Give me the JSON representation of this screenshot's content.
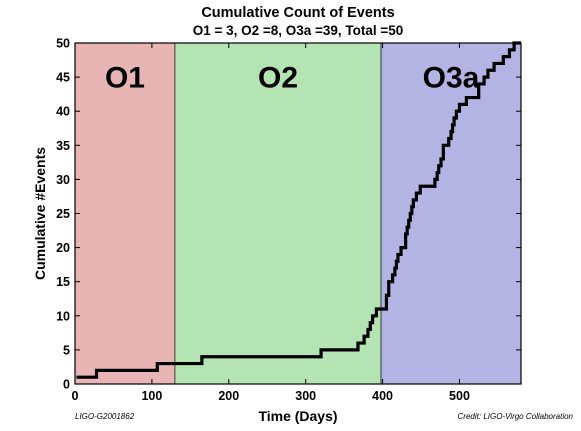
{
  "chart_data": {
    "type": "line",
    "title": "Cumulative Count of Events",
    "subtitle": "O1 = 3, O2 =8, O3a =39, Total =50",
    "xlabel": "Time (Days)",
    "ylabel": "Cumulative #Events",
    "xlim": [
      0,
      580
    ],
    "ylim": [
      0,
      50
    ],
    "xticks": [
      0,
      100,
      200,
      300,
      400,
      500
    ],
    "yticks": [
      0,
      5,
      10,
      15,
      20,
      25,
      30,
      35,
      40,
      45,
      50
    ],
    "grid": false,
    "regions": [
      {
        "label": "O1",
        "x_start": 0,
        "x_end": 130,
        "color": "#e8b4b4"
      },
      {
        "label": "O2",
        "x_start": 130,
        "x_end": 398,
        "color": "#b4e4b4"
      },
      {
        "label": "O3a",
        "x_start": 398,
        "x_end": 580,
        "color": "#b4b4e4"
      }
    ],
    "series": [
      {
        "color": "#000000",
        "step": true,
        "points": [
          [
            2,
            1
          ],
          [
            28,
            2
          ],
          [
            107,
            3
          ],
          [
            165,
            4
          ],
          [
            320,
            5
          ],
          [
            368,
            6
          ],
          [
            376,
            7
          ],
          [
            381,
            8
          ],
          [
            384,
            9
          ],
          [
            387,
            10
          ],
          [
            392,
            11
          ],
          [
            405,
            13
          ],
          [
            408,
            15
          ],
          [
            413,
            16
          ],
          [
            416,
            17
          ],
          [
            418,
            18
          ],
          [
            420,
            19
          ],
          [
            424,
            20
          ],
          [
            430,
            22
          ],
          [
            432,
            23
          ],
          [
            434,
            24
          ],
          [
            436,
            25
          ],
          [
            438,
            26
          ],
          [
            440,
            27
          ],
          [
            444,
            28
          ],
          [
            449,
            29
          ],
          [
            468,
            30
          ],
          [
            471,
            31
          ],
          [
            473,
            32
          ],
          [
            476,
            33
          ],
          [
            479,
            35
          ],
          [
            486,
            36
          ],
          [
            489,
            37
          ],
          [
            491,
            38
          ],
          [
            493,
            39
          ],
          [
            496,
            40
          ],
          [
            500,
            41
          ],
          [
            509,
            42
          ],
          [
            525,
            44
          ],
          [
            532,
            45
          ],
          [
            537,
            46
          ],
          [
            545,
            47
          ],
          [
            557,
            48
          ],
          [
            565,
            49
          ],
          [
            571,
            50
          ],
          [
            580,
            50
          ]
        ]
      }
    ]
  },
  "footer": {
    "left": "LIGO-G2001862",
    "right": "Credit: LIGO-Virgo Collaboration"
  }
}
